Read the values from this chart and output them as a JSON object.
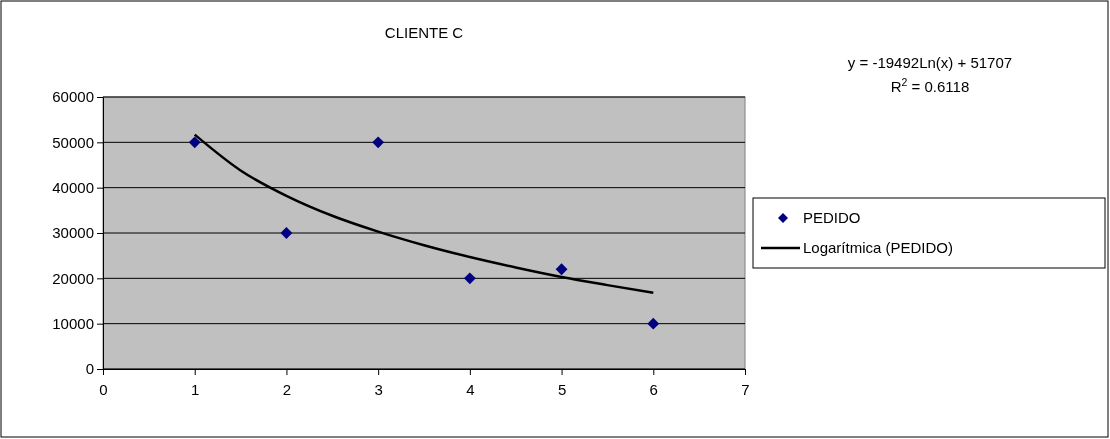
{
  "chart_data": {
    "type": "scatter",
    "title": "CLIENTE C",
    "xlim": [
      0,
      7
    ],
    "xticks": [
      0,
      1,
      2,
      3,
      4,
      5,
      6,
      7
    ],
    "ylim": [
      0,
      60000
    ],
    "yticks": [
      0,
      10000,
      20000,
      30000,
      40000,
      50000,
      60000
    ],
    "grid": "y",
    "legend": "right",
    "marker": "diamond",
    "annotations": [
      "y = -19492Ln(x) + 51707",
      "R$^{2}$ = 0.6118"
    ],
    "series": [
      {
        "name": "PEDIDO",
        "type": "scatter",
        "color": "#000080",
        "x": [
          1,
          2,
          3,
          4,
          5,
          6
        ],
        "values": [
          50000,
          30000,
          50000,
          20000,
          22000,
          10000
        ]
      },
      {
        "name": "Logarítmica (PEDIDO)",
        "type": "line",
        "color": "#000000",
        "line_style": "solid",
        "marker": "none",
        "x": [
          1,
          1.5,
          2,
          2.5,
          3,
          3.5,
          4,
          4.5,
          5,
          5.5,
          6
        ],
        "values": [
          51700,
          43800,
          38200,
          33800,
          30300,
          27300,
          24700,
          22400,
          20300,
          18500,
          16800
        ]
      }
    ]
  }
}
